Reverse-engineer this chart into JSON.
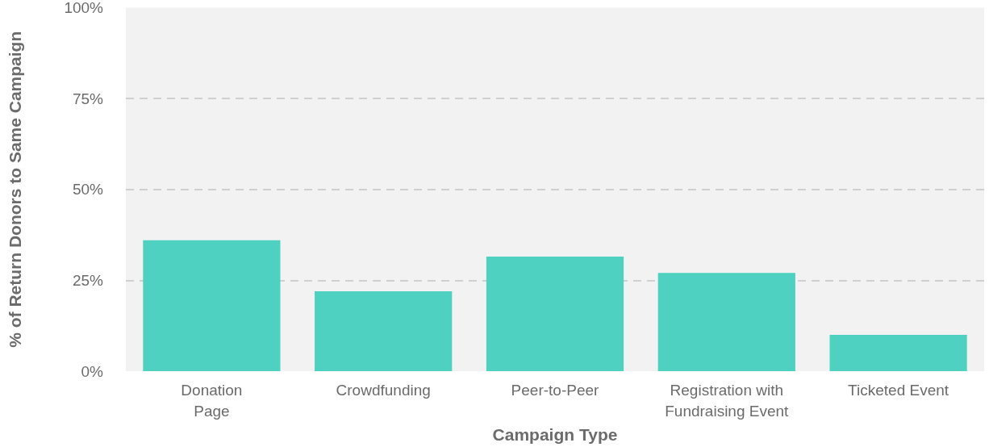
{
  "chart_data": {
    "type": "bar",
    "xlabel": "Campaign Type",
    "ylabel": "% of Return Donors to Same Campaign",
    "categories": [
      "Donation\nPage",
      "Crowdfunding",
      "Peer-to-Peer",
      "Registration with\nFundraising Event",
      "Ticketed Event"
    ],
    "values": [
      36,
      22,
      31.5,
      27,
      10
    ],
    "color": "#4fd1c1",
    "ylim": [
      0,
      100
    ],
    "yticks": [
      {
        "value": 0,
        "label": "0%"
      },
      {
        "value": 25,
        "label": "25%"
      },
      {
        "value": 50,
        "label": "50%"
      },
      {
        "value": 75,
        "label": "75%"
      },
      {
        "value": 100,
        "label": "100%"
      }
    ],
    "grid": "y"
  }
}
